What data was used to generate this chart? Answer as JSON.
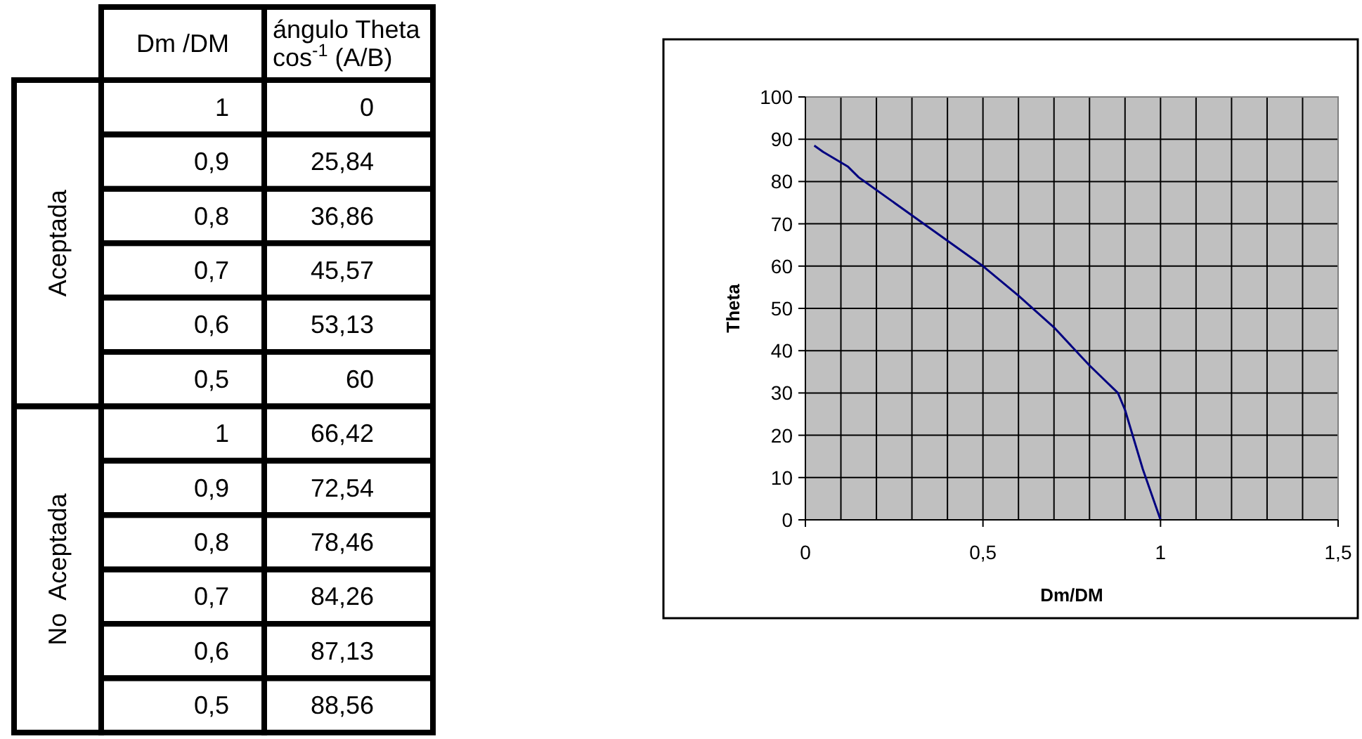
{
  "chart_data": [
    {
      "type": "other",
      "xlabel": "Dm /DM",
      "ylabel": "ángulo Theta\ncos$^{-1}$ (A/B)",
      "annotations": [
        "Aceptada",
        "No  Aceptada",
        "1",
        "0",
        "0,9",
        "25,84",
        "0,8",
        "36,86",
        "0,7",
        "45,57",
        "0,6",
        "53,13",
        "0,5",
        "60",
        "1",
        "66,42",
        "0,9",
        "72,54",
        "0,8",
        "78,46",
        "0,7",
        "84,26",
        "0,6",
        "87,13",
        "0,5",
        "88,56"
      ]
    },
    {
      "type": "line",
      "xlabel": "Dm/DM",
      "ylabel": "Theta",
      "grid": true,
      "marker": "none",
      "line_style": "solid",
      "xlim": [
        0,
        1.5
      ],
      "ylim": [
        0,
        100
      ],
      "xticks": [
        0,
        {
          "value": 0.1,
          "label": null
        },
        {
          "value": 0.2,
          "label": null
        },
        {
          "value": 0.3,
          "label": null
        },
        {
          "value": 0.4,
          "label": null
        },
        {
          "value": 0.5,
          "label": "0,5"
        },
        {
          "value": 0.6,
          "label": null
        },
        {
          "value": 0.7,
          "label": null
        },
        {
          "value": 0.8,
          "label": null
        },
        {
          "value": 0.9,
          "label": null
        },
        1,
        {
          "value": 1.1,
          "label": null
        },
        {
          "value": 1.2,
          "label": null
        },
        {
          "value": 1.3,
          "label": null
        },
        {
          "value": 1.4,
          "label": null
        },
        {
          "value": 1.5,
          "label": "1,5"
        }
      ],
      "yticks": [
        0,
        10,
        20,
        30,
        40,
        50,
        60,
        70,
        80,
        90,
        100
      ],
      "series": [
        {
          "color": "#000080",
          "x": [
            0.025,
            0.05,
            0.12,
            0.15,
            0.5,
            0.6,
            0.7,
            0.8,
            0.88,
            0.9,
            0.95,
            1
          ],
          "values": [
            88.5,
            87,
            83.5,
            81,
            60,
            53,
            45.5,
            36.5,
            30,
            26,
            12,
            0
          ]
        }
      ]
    }
  ]
}
